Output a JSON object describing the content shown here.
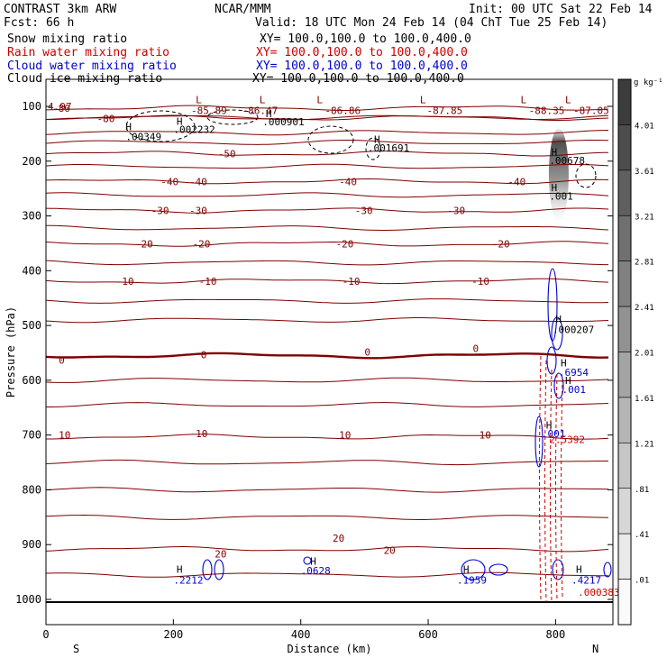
{
  "header": {
    "title_left": "CONTRAST  3km ARW",
    "forecast": "Fcst:   66 h",
    "center": "NCAR/MMM",
    "init": "Init: 00 UTC Sat 22 Feb 14",
    "valid": "Valid: 18 UTC Mon 24 Feb 14 (04 ChT Tue 25 Feb 14)",
    "fields": [
      {
        "name": "Snow mixing ratio",
        "xy": "XY= 100.0,100.0 to 100.0,400.0",
        "color": "#000000"
      },
      {
        "name": "Rain water mixing ratio",
        "xy": "XY= 100.0,100.0 to 100.0,400.0",
        "color": "#cc0000"
      },
      {
        "name": "Cloud water mixing ratio",
        "xy": "XY= 100.0,100.0 to 100.0,400.0",
        "color": "#0000cc"
      },
      {
        "name": "Cloud ice mixing ratio",
        "xy": "XY= 100.0,100.0 to 100.0,400.0",
        "color": "#000000"
      }
    ]
  },
  "chart_data": {
    "type": "cross-section",
    "xlabel": "Distance (km)",
    "ylabel": "Pressure (hPa)",
    "xlim": [
      0,
      890
    ],
    "ylim": [
      1050,
      50
    ],
    "x_ticks": [
      0,
      200,
      400,
      600,
      800
    ],
    "y_ticks": [
      100,
      200,
      300,
      400,
      500,
      600,
      700,
      800,
      900,
      1000
    ],
    "end_labels": {
      "left": "S",
      "right": "N"
    },
    "colorbar": {
      "units": "g kg⁻¹",
      "ticks": [
        "4.01",
        "3.61",
        "3.21",
        "2.81",
        "2.41",
        "2.01",
        "1.61",
        "1.21",
        ".81",
        ".41",
        ".01"
      ]
    },
    "temperature_contours": {
      "color": "#800000",
      "levels": [
        {
          "p": 103,
          "label": "-80"
        },
        {
          "p": 121,
          "label": "-80"
        },
        {
          "p": 186,
          "label": "-50"
        },
        {
          "p": 237,
          "label": "-40"
        },
        {
          "p": 290,
          "label": "-30"
        },
        {
          "p": 351,
          "label": "-20"
        },
        {
          "p": 419,
          "label": "-10"
        },
        {
          "p": 555,
          "label": "0"
        },
        {
          "p": 703,
          "label": "10"
        },
        {
          "p": 908,
          "label": "20"
        }
      ],
      "label_items": [
        {
          "x": 10,
          "p": 103,
          "t": "-80"
        },
        {
          "x": 80,
          "p": 122,
          "t": "-80"
        },
        {
          "x": 270,
          "p": 186,
          "t": "-50"
        },
        {
          "x": 180,
          "p": 237,
          "t": "-40"
        },
        {
          "x": 225,
          "p": 237,
          "t": "-40"
        },
        {
          "x": 460,
          "p": 237,
          "t": "-40"
        },
        {
          "x": 725,
          "p": 237,
          "t": "-40"
        },
        {
          "x": 165,
          "p": 290,
          "t": "-30"
        },
        {
          "x": 225,
          "p": 290,
          "t": "-30"
        },
        {
          "x": 485,
          "p": 290,
          "t": "-30"
        },
        {
          "x": 630,
          "p": 290,
          "t": "-30"
        },
        {
          "x": 140,
          "p": 351,
          "t": "-20"
        },
        {
          "x": 230,
          "p": 351,
          "t": "-20"
        },
        {
          "x": 455,
          "p": 351,
          "t": "-20"
        },
        {
          "x": 700,
          "p": 351,
          "t": "-20"
        },
        {
          "x": 110,
          "p": 419,
          "t": "-10"
        },
        {
          "x": 240,
          "p": 419,
          "t": "-10"
        },
        {
          "x": 465,
          "p": 419,
          "t": "-10"
        },
        {
          "x": 668,
          "p": 419,
          "t": "-10"
        },
        {
          "x": 20,
          "p": 563,
          "t": "0"
        },
        {
          "x": 243,
          "p": 553,
          "t": "0"
        },
        {
          "x": 500,
          "p": 548,
          "t": "0"
        },
        {
          "x": 670,
          "p": 542,
          "t": "0"
        },
        {
          "x": 20,
          "p": 700,
          "t": "10"
        },
        {
          "x": 235,
          "p": 697,
          "t": "10"
        },
        {
          "x": 460,
          "p": 700,
          "t": "10"
        },
        {
          "x": 680,
          "p": 700,
          "t": "10"
        },
        {
          "x": 265,
          "p": 917,
          "t": "20"
        },
        {
          "x": 450,
          "p": 888,
          "t": "20"
        },
        {
          "x": 530,
          "p": 910,
          "t": "20"
        }
      ]
    },
    "min_labels": [
      {
        "x": 0,
        "p": 100,
        "t": "4.97"
      },
      {
        "x": 225,
        "p": 107,
        "t": "-85.89"
      },
      {
        "x": 305,
        "p": 107,
        "t": "-86.47"
      },
      {
        "x": 435,
        "p": 107,
        "t": "-86.86"
      },
      {
        "x": 595,
        "p": 107,
        "t": "-87.85"
      },
      {
        "x": 755,
        "p": 107,
        "t": "-88.35"
      },
      {
        "x": 825,
        "p": 107,
        "t": "-87.05"
      }
    ],
    "max_labels": [
      {
        "x": 125,
        "p": 155,
        "t": ".00349",
        "color": "#000000"
      },
      {
        "x": 200,
        "p": 142,
        "t": ".002232",
        "color": "#000000"
      },
      {
        "x": 340,
        "p": 128,
        "t": ".000901",
        "color": "#000000"
      },
      {
        "x": 505,
        "p": 176,
        "t": ".001691",
        "color": "#000000"
      },
      {
        "x": 790,
        "p": 199,
        "t": ".00678",
        "color": "#000000"
      },
      {
        "x": 790,
        "p": 264,
        "t": ".001",
        "color": "#000000"
      },
      {
        "x": 795,
        "p": 507,
        "t": ".000207",
        "color": "#000000"
      },
      {
        "x": 805,
        "p": 585,
        "t": ".6954",
        "color": "#0000cc"
      },
      {
        "x": 810,
        "p": 617,
        "t": ".001",
        "color": "#0000cc"
      },
      {
        "x": 778,
        "p": 697,
        "t": ".001",
        "color": "#0000cc"
      },
      {
        "x": 790,
        "p": 708,
        "t": "2.5392",
        "color": "#cc0000"
      },
      {
        "x": 200,
        "p": 965,
        "t": ".2212",
        "color": "#0000cc"
      },
      {
        "x": 400,
        "p": 947,
        "t": ".0628",
        "color": "#0000cc"
      },
      {
        "x": 645,
        "p": 965,
        "t": ".1959",
        "color": "#0000cc"
      },
      {
        "x": 825,
        "p": 965,
        "t": ".4217",
        "color": "#0000cc"
      },
      {
        "x": 835,
        "p": 987,
        "t": ".000383",
        "color": "#cc0000"
      }
    ],
    "h_markers": [
      {
        "x": 125,
        "p": 137
      },
      {
        "x": 205,
        "p": 127
      },
      {
        "x": 345,
        "p": 113
      },
      {
        "x": 515,
        "p": 160
      },
      {
        "x": 793,
        "p": 183
      },
      {
        "x": 793,
        "p": 248
      },
      {
        "x": 800,
        "p": 488
      },
      {
        "x": 808,
        "p": 568
      },
      {
        "x": 815,
        "p": 600
      },
      {
        "x": 785,
        "p": 682
      },
      {
        "x": 205,
        "p": 945
      },
      {
        "x": 415,
        "p": 930
      },
      {
        "x": 655,
        "p": 945
      },
      {
        "x": 832,
        "p": 945
      }
    ],
    "l_markers": [
      {
        "x": 235,
        "p": 88
      },
      {
        "x": 335,
        "p": 88
      },
      {
        "x": 425,
        "p": 88
      },
      {
        "x": 587,
        "p": 88
      },
      {
        "x": 745,
        "p": 88
      },
      {
        "x": 815,
        "p": 88
      }
    ]
  }
}
